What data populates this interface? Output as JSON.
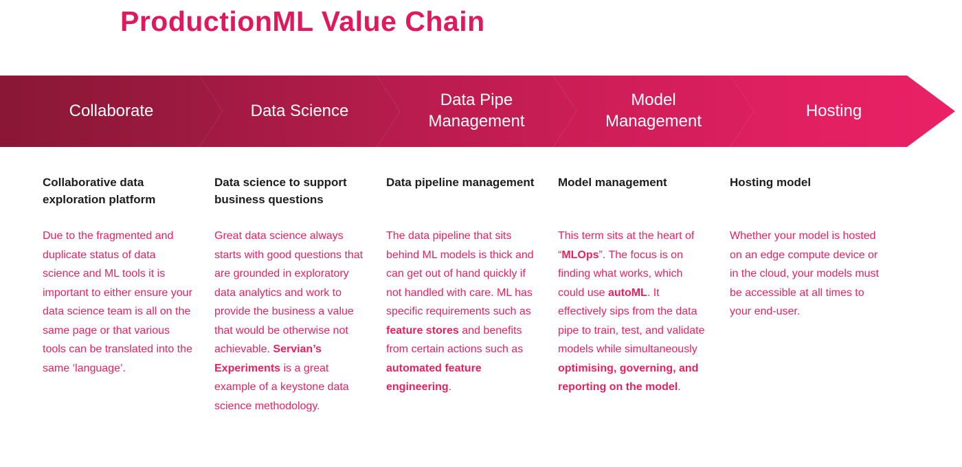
{
  "title": "ProductionML Value Chain",
  "colors": {
    "title": "#df195c",
    "body_text": "#e9215f",
    "heading_text": "#1d1d1d",
    "banner_gradient_start": "#891735",
    "banner_gradient_end": "#ea2165"
  },
  "banner": {
    "stages": [
      {
        "label": "Collaborate"
      },
      {
        "label": "Data Science"
      },
      {
        "label": "Data Pipe\nManagement"
      },
      {
        "label": "Model\nManagement"
      },
      {
        "label": "Hosting"
      }
    ]
  },
  "columns": [
    {
      "heading": "Collaborative data exploration platform",
      "body": [
        {
          "t": "Due to the fragmented and duplicate status of data science and ML tools it is important to either ensure your data science team is all on the same page or that various tools can be translated into the same ‘language’.",
          "b": false
        }
      ]
    },
    {
      "heading": "Data science to support business questions",
      "body": [
        {
          "t": "Great data science always starts with good questions that are grounded in exploratory data analytics and work to provide the business a value that would be otherwise not achievable. ",
          "b": false
        },
        {
          "t": "Servian’s Experiments",
          "b": true
        },
        {
          "t": " is a great example of a keystone data science methodology.",
          "b": false
        }
      ]
    },
    {
      "heading": "Data pipeline management",
      "body": [
        {
          "t": "The data pipeline that sits behind ML models is thick and can get out of hand quickly if not handled with care. ML has specific requirements such as ",
          "b": false
        },
        {
          "t": "feature stores",
          "b": true
        },
        {
          "t": " and benefits from certain actions such as ",
          "b": false
        },
        {
          "t": "automated feature engineering",
          "b": true
        },
        {
          "t": ".",
          "b": false
        }
      ]
    },
    {
      "heading": "Model management",
      "body": [
        {
          "t": "This term sits at the heart of “",
          "b": false
        },
        {
          "t": "MLOps",
          "b": true
        },
        {
          "t": "”. The focus is on finding what works, which could use ",
          "b": false
        },
        {
          "t": "autoML",
          "b": true
        },
        {
          "t": ". It effectively sips from the data pipe to train, test, and validate models while simultaneously ",
          "b": false
        },
        {
          "t": "optimising, governing, and reporting on the model",
          "b": true
        },
        {
          "t": ".",
          "b": false
        }
      ]
    },
    {
      "heading": "Hosting model",
      "body": [
        {
          "t": "Whether your model is hosted on an edge compute device or in the cloud, your models must be accessible at all times to your end-user.",
          "b": false
        }
      ]
    }
  ]
}
